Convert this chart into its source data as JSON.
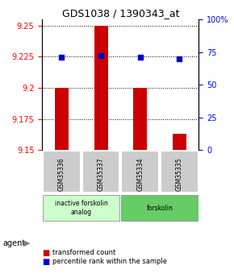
{
  "title": "GDS1038 / 1390343_at",
  "samples": [
    "GSM35336",
    "GSM35337",
    "GSM35334",
    "GSM35335"
  ],
  "bar_values": [
    9.2,
    9.25,
    9.2,
    9.163
  ],
  "bar_baseline": 9.15,
  "percentile_values": [
    71,
    72,
    71,
    70
  ],
  "ylim_left": [
    9.15,
    9.255
  ],
  "yticks_left": [
    9.15,
    9.175,
    9.2,
    9.225,
    9.25
  ],
  "yticks_right": [
    0,
    25,
    50,
    75,
    100
  ],
  "bar_color": "#cc0000",
  "dot_color": "#0000cc",
  "groups": [
    {
      "label": "inactive forskolin\nanalog",
      "span": [
        0,
        2
      ],
      "color": "#ccffcc"
    },
    {
      "label": "forskolin",
      "span": [
        2,
        4
      ],
      "color": "#66cc66"
    }
  ],
  "sample_box_color": "#cccccc",
  "agent_label": "agent",
  "legend_items": [
    {
      "color": "#cc0000",
      "label": "transformed count"
    },
    {
      "color": "#0000cc",
      "label": "percentile rank within the sample"
    }
  ]
}
